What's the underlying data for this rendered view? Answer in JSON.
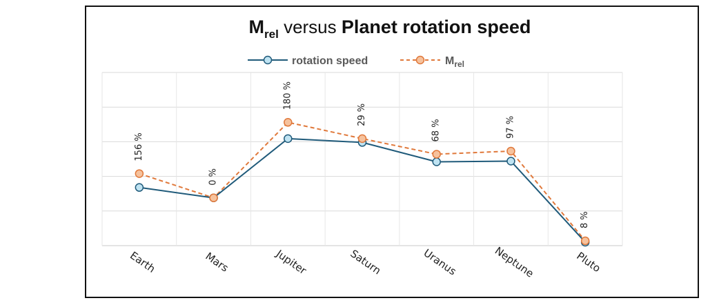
{
  "chart_data": {
    "type": "line",
    "title": {
      "part1": "M",
      "part1_sub": "rel",
      "part2": " versus ",
      "part3": "Planet rotation speed"
    },
    "categories": [
      "Earth",
      "Mars",
      "Jupiter",
      "Saturn",
      "Uranus",
      "Neptune",
      "Pluto"
    ],
    "series": [
      {
        "name": "rotation speed",
        "color": "#1f5a7a",
        "marker_fill": "#bfe3f2",
        "line_style": "solid",
        "values": [
          1.68,
          1.38,
          3.09,
          2.98,
          2.42,
          2.44,
          0.1
        ]
      },
      {
        "name": "M",
        "name_sub": "rel",
        "color": "#e0783a",
        "marker_fill": "#f6c29d",
        "line_style": "dashed",
        "values": [
          2.08,
          1.38,
          3.56,
          3.09,
          2.64,
          2.73,
          0.14
        ]
      }
    ],
    "data_labels": [
      "156 %",
      "0 %",
      "180 %",
      "29 %",
      "68 %",
      "97 %",
      "8 %"
    ],
    "ylim": [
      0,
      5
    ],
    "grid": true,
    "legend_position": "top-center",
    "xlabel": "",
    "ylabel": ""
  }
}
